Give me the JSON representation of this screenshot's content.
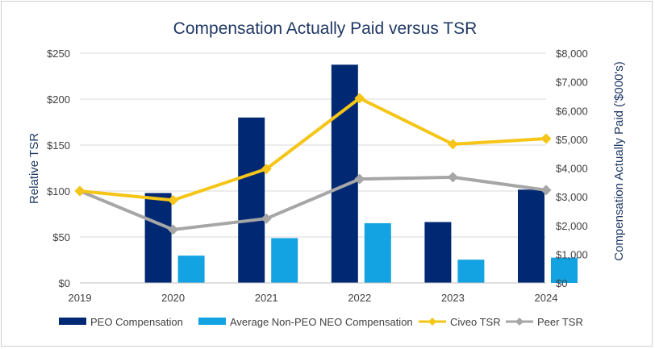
{
  "chart_data": {
    "type": "bar",
    "title": "Compensation Actually Paid versus TSR",
    "categories": [
      "2019",
      "2020",
      "2021",
      "2022",
      "2023",
      "2024"
    ],
    "left_axis": {
      "label": "Relative TSR",
      "ylim": [
        0,
        250
      ],
      "ticks": [
        0,
        50,
        100,
        150,
        200,
        250
      ],
      "tick_labels": [
        "$0",
        "$50",
        "$100",
        "$150",
        "$200",
        "$250"
      ]
    },
    "right_axis": {
      "label": "Compensation Actually Paid ('$000's)",
      "ylim": [
        0,
        8000
      ],
      "ticks": [
        0,
        1000,
        2000,
        3000,
        4000,
        5000,
        6000,
        7000,
        8000
      ],
      "tick_labels": [
        "$0",
        "$1,000",
        "$2,000",
        "$3,000",
        "$4,000",
        "$5,000",
        "$6,000",
        "$7,000",
        "$8,000"
      ]
    },
    "series": [
      {
        "name": "PEO Compensation",
        "kind": "bar",
        "axis": "right",
        "color": "#002873",
        "values": [
          null,
          3130,
          5760,
          7600,
          2120,
          3250
        ]
      },
      {
        "name": "Average Non-PEO NEO Compensation",
        "kind": "bar",
        "axis": "right",
        "color": "#13a3e3",
        "values": [
          null,
          950,
          1560,
          2080,
          810,
          880
        ]
      },
      {
        "name": "Civeo TSR",
        "kind": "line",
        "axis": "left",
        "color": "#f5c518",
        "marker": "diamond",
        "values": [
          100,
          90,
          124,
          201,
          151,
          157
        ]
      },
      {
        "name": "Peer TSR",
        "kind": "line",
        "axis": "left",
        "color": "#a6a6a6",
        "marker": "diamond",
        "values": [
          100,
          58,
          70,
          113,
          115,
          101
        ]
      }
    ],
    "grid": true,
    "legend_position": "bottom"
  }
}
